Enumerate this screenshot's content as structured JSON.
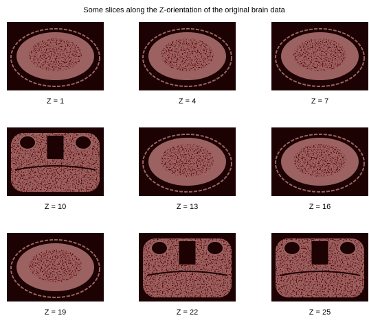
{
  "title": "Some slices along the Z-orientation of the original brain data",
  "panels": [
    "Z = 1",
    "Z = 4",
    "Z = 7",
    "Z = 10",
    "Z = 13",
    "Z = 16",
    "Z = 19",
    "Z = 22",
    "Z = 25"
  ]
}
